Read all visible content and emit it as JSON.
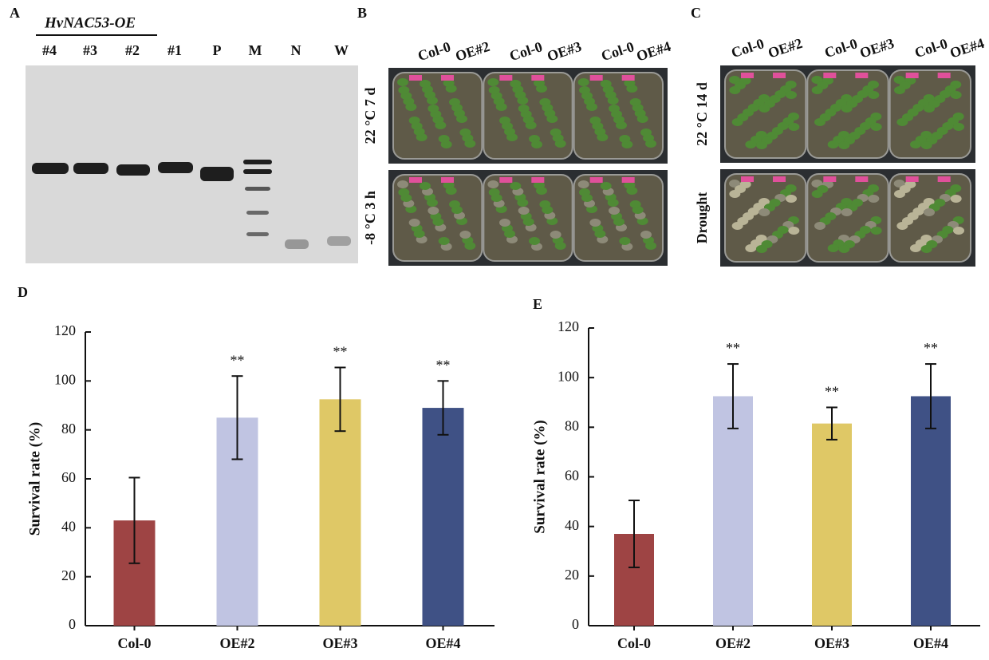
{
  "gel": {
    "label": "A",
    "group_label": "HvNAC53-OE",
    "lanes": [
      "#4",
      "#3",
      "#2",
      "#1",
      "P",
      "M",
      "N",
      "W"
    ]
  },
  "photo_b": {
    "label": "B",
    "columns": [
      "Col-0",
      "OE#2",
      "Col-0",
      "OE#3",
      "Col-0",
      "OE#4"
    ],
    "rows": [
      "22 °C 7 d",
      "-8 °C 3 h"
    ]
  },
  "photo_c": {
    "label": "C",
    "columns": [
      "Col-0",
      "OE#2",
      "Col-0",
      "OE#3",
      "Col-0",
      "OE#4"
    ],
    "rows": [
      "22 °C 14 d",
      "Drought"
    ]
  },
  "chart_data": [
    {
      "type": "bar",
      "label": "D",
      "y_label": "Survival rate (%)",
      "categories": [
        "Col-0",
        "OE#2",
        "OE#3",
        "OE#4"
      ],
      "values": [
        43,
        85,
        92.5,
        89
      ],
      "errors": [
        17.5,
        17,
        13,
        11
      ],
      "annotations": [
        null,
        "**",
        "**",
        "**"
      ],
      "colors": [
        "#9e4444",
        "#c0c4e2",
        "#dfc866",
        "#3f5185"
      ],
      "ylim": [
        0,
        120
      ],
      "yticks": [
        0,
        20,
        40,
        60,
        80,
        100,
        120
      ]
    },
    {
      "type": "bar",
      "label": "E",
      "y_label": "Survival rate (%)",
      "categories": [
        "Col-0",
        "OE#2",
        "OE#3",
        "OE#4"
      ],
      "values": [
        37,
        92.5,
        81.5,
        92.5
      ],
      "errors": [
        13.5,
        13,
        6.5,
        13
      ],
      "annotations": [
        null,
        "**",
        "**",
        "**"
      ],
      "colors": [
        "#9e4444",
        "#c0c4e2",
        "#dfc866",
        "#3f5185"
      ],
      "ylim": [
        0,
        120
      ],
      "yticks": [
        0,
        20,
        40,
        60,
        80,
        100,
        120
      ]
    }
  ]
}
